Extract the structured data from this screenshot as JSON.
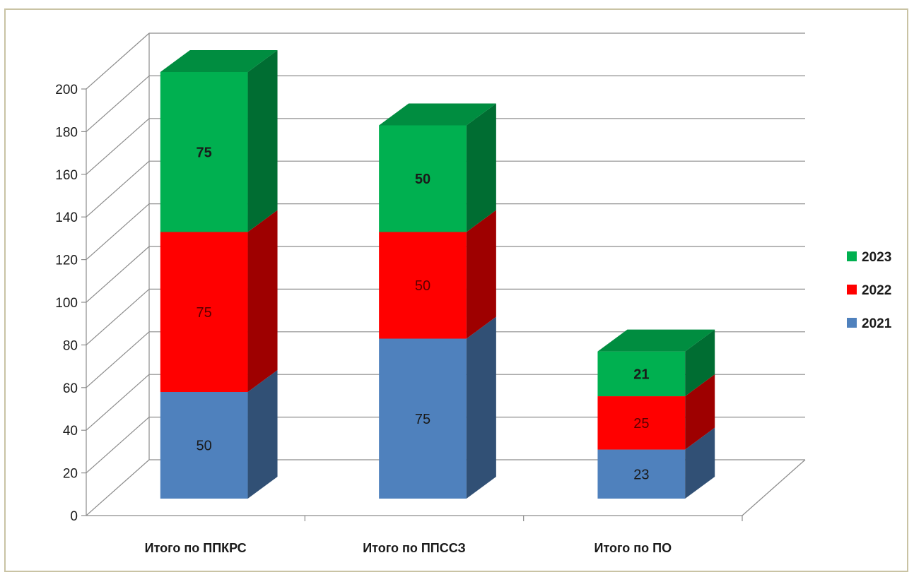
{
  "chart_data": {
    "type": "bar",
    "stacked": true,
    "three_d": true,
    "categories": [
      "Итого по ППКРС",
      "Итого по ППССЗ",
      "Итого по ПО"
    ],
    "series": [
      {
        "name": "2021",
        "values": [
          50,
          75,
          23
        ],
        "color": "#4f81bd",
        "label_color": "#1a1a1a",
        "label_bold": false
      },
      {
        "name": "2022",
        "values": [
          75,
          50,
          25
        ],
        "color": "#ff0000",
        "label_color": "#5a0000",
        "label_bold": false
      },
      {
        "name": "2023",
        "values": [
          75,
          50,
          21
        ],
        "color": "#00b050",
        "label_color": "#1a1a1a",
        "label_bold": true
      }
    ],
    "ylim": [
      0,
      200
    ],
    "y_ticks": [
      "0",
      "20",
      "40",
      "60",
      "80",
      "100",
      "120",
      "140",
      "160",
      "180",
      "200"
    ],
    "grid": true,
    "legend": {
      "position": "right",
      "order": [
        "2023",
        "2022",
        "2021"
      ]
    },
    "title": "",
    "xlabel": "",
    "ylabel": ""
  }
}
